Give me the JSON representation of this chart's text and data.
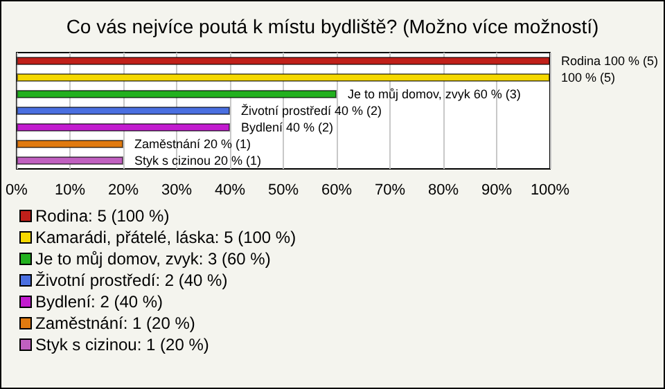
{
  "chart_data": {
    "type": "bar",
    "title": "Co vás nejvíce poutá k místu bydliště? (Možno více možností)",
    "orientation": "horizontal",
    "stacked": true,
    "categories": [
      null,
      null,
      null,
      null,
      null,
      null,
      null
    ],
    "series": [
      {
        "name": "Rodina: 5 (100 %)",
        "color": "#c0201a",
        "values": [
          100,
          null,
          null,
          null,
          null,
          null,
          null
        ],
        "value_labels": [
          "Rodina 100 % (5)",
          null,
          null,
          null,
          null,
          null,
          null
        ]
      },
      {
        "name": "Kamarádi, přátelé, láska: 5 (100 %)",
        "color": "#f5d800",
        "values": [
          null,
          100,
          null,
          null,
          null,
          null,
          null
        ],
        "value_labels": [
          null,
          "100 % (5)",
          null,
          null,
          null,
          null,
          null
        ]
      },
      {
        "name": "Je to můj domov, zvyk: 3 (60 %)",
        "color": "#22b01e",
        "values": [
          null,
          null,
          60,
          null,
          null,
          null,
          null
        ],
        "value_labels": [
          null,
          null,
          "Je to můj domov, zvyk 60 % (3)",
          null,
          null,
          null,
          null
        ]
      },
      {
        "name": "Životní prostředí: 2 (40 %)",
        "color": "#4a6fe0",
        "values": [
          null,
          null,
          null,
          40,
          null,
          null,
          null
        ],
        "value_labels": [
          null,
          null,
          null,
          "Životní prostředí 40 % (2)",
          null,
          null,
          null
        ]
      },
      {
        "name": "Bydlení: 2 (40 %)",
        "color": "#c21ccf",
        "values": [
          null,
          null,
          null,
          null,
          40,
          null,
          null
        ],
        "value_labels": [
          null,
          null,
          null,
          null,
          "Bydlení 40 % (2)",
          null,
          null
        ]
      },
      {
        "name": "Zaměstnání: 1 (20 %)",
        "color": "#e07a10",
        "values": [
          null,
          null,
          null,
          null,
          null,
          20,
          null
        ],
        "value_labels": [
          null,
          null,
          null,
          null,
          null,
          "Zaměstnání 20 % (1)",
          null
        ]
      },
      {
        "name": "Styk s cizinou: 1 (20 %)",
        "color": "#c060c0",
        "values": [
          null,
          null,
          null,
          null,
          null,
          null,
          20
        ],
        "value_labels": [
          null,
          null,
          null,
          null,
          null,
          null,
          "Styk s cizinou 20 % (1)"
        ]
      }
    ],
    "xlim": [
      0,
      100
    ],
    "xticks": [
      {
        "value": 0,
        "label": "0%"
      },
      {
        "value": 10,
        "label": "10%"
      },
      {
        "value": 20,
        "label": "20%"
      },
      {
        "value": 30,
        "label": "30%"
      },
      {
        "value": 40,
        "label": "40%"
      },
      {
        "value": 50,
        "label": "50%"
      },
      {
        "value": 60,
        "label": "60%"
      },
      {
        "value": 70,
        "label": "70%"
      },
      {
        "value": 80,
        "label": "80%"
      },
      {
        "value": 90,
        "label": "90%"
      },
      {
        "value": 100,
        "label": "100%"
      }
    ],
    "grid": "x",
    "legend": "bottom",
    "tick_labels": "x"
  }
}
